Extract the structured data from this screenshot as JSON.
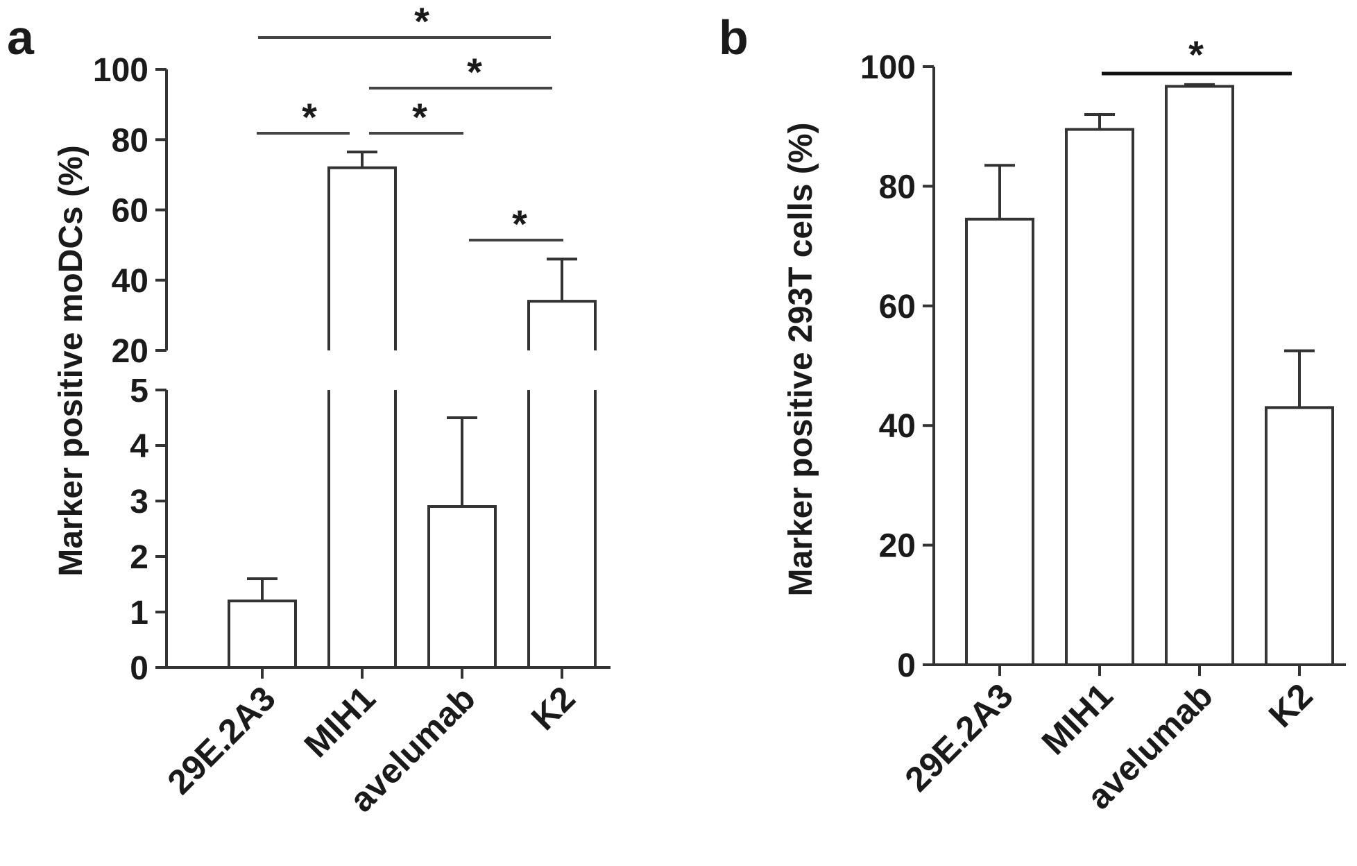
{
  "panels": [
    {
      "label": "a",
      "ylabel": "Marker positive moDCs (%)",
      "categories": [
        "29E.2A3",
        "MIH1",
        "avelumab",
        "K2"
      ],
      "axis_break": {
        "lower_range": [
          0,
          5
        ],
        "upper_range": [
          20,
          100
        ]
      },
      "lower_ticks": [
        "0",
        "1",
        "2",
        "3",
        "4",
        "5"
      ],
      "upper_ticks": [
        "20",
        "40",
        "60",
        "80",
        "100"
      ],
      "significance_symbol": "*",
      "significance": [
        {
          "from": 0,
          "to": 3
        },
        {
          "from": 1,
          "to": 3
        },
        {
          "from": 0,
          "to": 1
        },
        {
          "from": 1,
          "to": 2
        },
        {
          "from": 2,
          "to": 3
        }
      ]
    },
    {
      "label": "b",
      "ylabel": "Marker positive 293T cells (%)",
      "categories": [
        "29E.2A3",
        "MIH1",
        "avelumab",
        "K2"
      ],
      "ticks": [
        "0",
        "20",
        "40",
        "60",
        "80",
        "100"
      ],
      "significance_symbol": "*",
      "significance": [
        {
          "from": 1,
          "to": 3
        }
      ]
    }
  ],
  "chart_data": [
    {
      "type": "bar",
      "title": "a",
      "xlabel": "",
      "ylabel": "Marker positive moDCs (%)",
      "categories": [
        "29E.2A3",
        "MIH1",
        "avelumab",
        "K2"
      ],
      "values": [
        1.2,
        72,
        2.9,
        34
      ],
      "errors": [
        0.4,
        4.5,
        1.6,
        12
      ],
      "ylim": [
        0,
        100
      ],
      "axis_break": [
        5,
        20
      ]
    },
    {
      "type": "bar",
      "title": "b",
      "xlabel": "",
      "ylabel": "Marker positive 293T cells (%)",
      "categories": [
        "29E.2A3",
        "MIH1",
        "avelumab",
        "K2"
      ],
      "values": [
        74.5,
        89.5,
        96.7,
        43
      ],
      "errors": [
        9,
        2.5,
        0.3,
        9.5
      ],
      "ylim": [
        0,
        100
      ]
    }
  ]
}
